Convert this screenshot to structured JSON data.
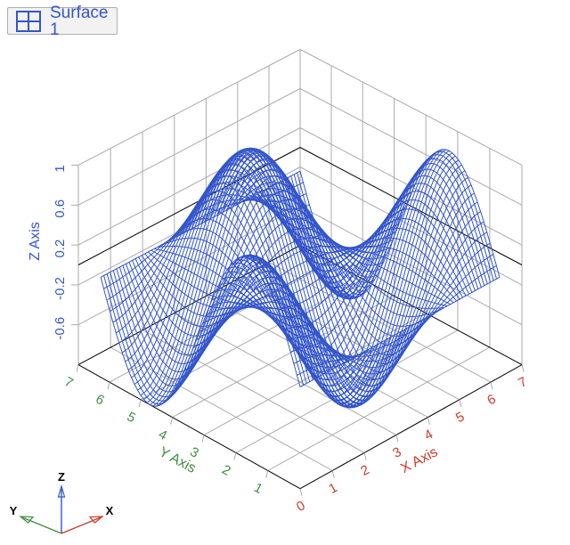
{
  "legend": {
    "label": "Surface 1",
    "icon": "grid-icon"
  },
  "colors": {
    "surface": "#3355cc",
    "x_axis": "#cc3b2b",
    "y_axis": "#3f8f3f",
    "z_axis": "#3355cc",
    "grid": "#aaaaaa",
    "box_line": "#000000",
    "triad_label": "#000000",
    "background": "#ffffff",
    "button_bg": "#f2f2f2",
    "button_border": "#afafaf"
  },
  "chart_data": {
    "type": "surface3d-wireframe",
    "z_function": "cos(x)*sin(y)",
    "x_data_range": [
      0,
      6.2832
    ],
    "y_data_range": [
      0,
      6.2832
    ],
    "grid_cells": 64,
    "axes": {
      "x": {
        "label": "X Axis",
        "ticks": [
          0,
          1,
          2,
          3,
          4,
          5,
          6,
          7
        ],
        "range": [
          0,
          7
        ]
      },
      "y": {
        "label": "Y Axis",
        "ticks": [
          1,
          2,
          3,
          4,
          5,
          6,
          7
        ],
        "range": [
          0,
          7
        ]
      },
      "z": {
        "label": "Z Axis",
        "ticks": [
          1,
          0.6,
          0.2,
          -0.2,
          -0.6
        ],
        "range": [
          -1,
          1
        ],
        "grid_step": 0.4
      }
    },
    "grid_on": true,
    "legend_position": "top-left"
  },
  "triad": {
    "x_label": "X",
    "y_label": "Y",
    "z_label": "Z"
  }
}
